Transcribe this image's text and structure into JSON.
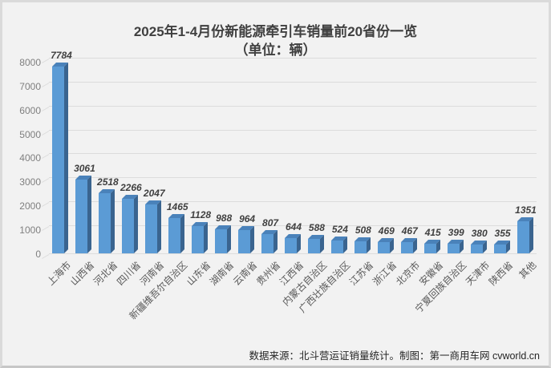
{
  "footer": {
    "text": "数据来源：北斗营运证销量统计。制图：第一商用车网 cvworld.cn"
  },
  "chart_data": {
    "type": "bar",
    "style": "3d",
    "title": "2025年1-4月份新能源牵引车销量前20省份一览",
    "subtitle": "（单位：辆）",
    "xlabel": "",
    "ylabel": "",
    "categories": [
      "上海市",
      "山西省",
      "河北省",
      "四川省",
      "河南省",
      "新疆维吾尔自治区",
      "山东省",
      "湖南省",
      "云南省",
      "贵州省",
      "江西省",
      "内蒙古自治区",
      "广西壮族自治区",
      "江苏省",
      "浙江省",
      "北京市",
      "安徽省",
      "宁夏回族自治区",
      "天津市",
      "陕西省",
      "其他"
    ],
    "values": [
      7784,
      3061,
      2518,
      2266,
      2047,
      1465,
      1128,
      988,
      964,
      807,
      644,
      588,
      524,
      508,
      469,
      467,
      415,
      399,
      380,
      355,
      1351
    ],
    "ylim": [
      0,
      8000
    ],
    "yticks": [
      0,
      1000,
      2000,
      3000,
      4000,
      5000,
      6000,
      7000,
      8000
    ],
    "grid": true,
    "legend": "none",
    "colors": {
      "bar_front": "#5b9bd5",
      "bar_top": "#4a82ba",
      "bar_side": "#3a648f",
      "gridline": "#dcdcdc",
      "background": "#f2f2f2",
      "title_text": "#404040",
      "value_label": "#404040",
      "x_label": "#595959",
      "y_label": "#7f7f7f"
    }
  }
}
